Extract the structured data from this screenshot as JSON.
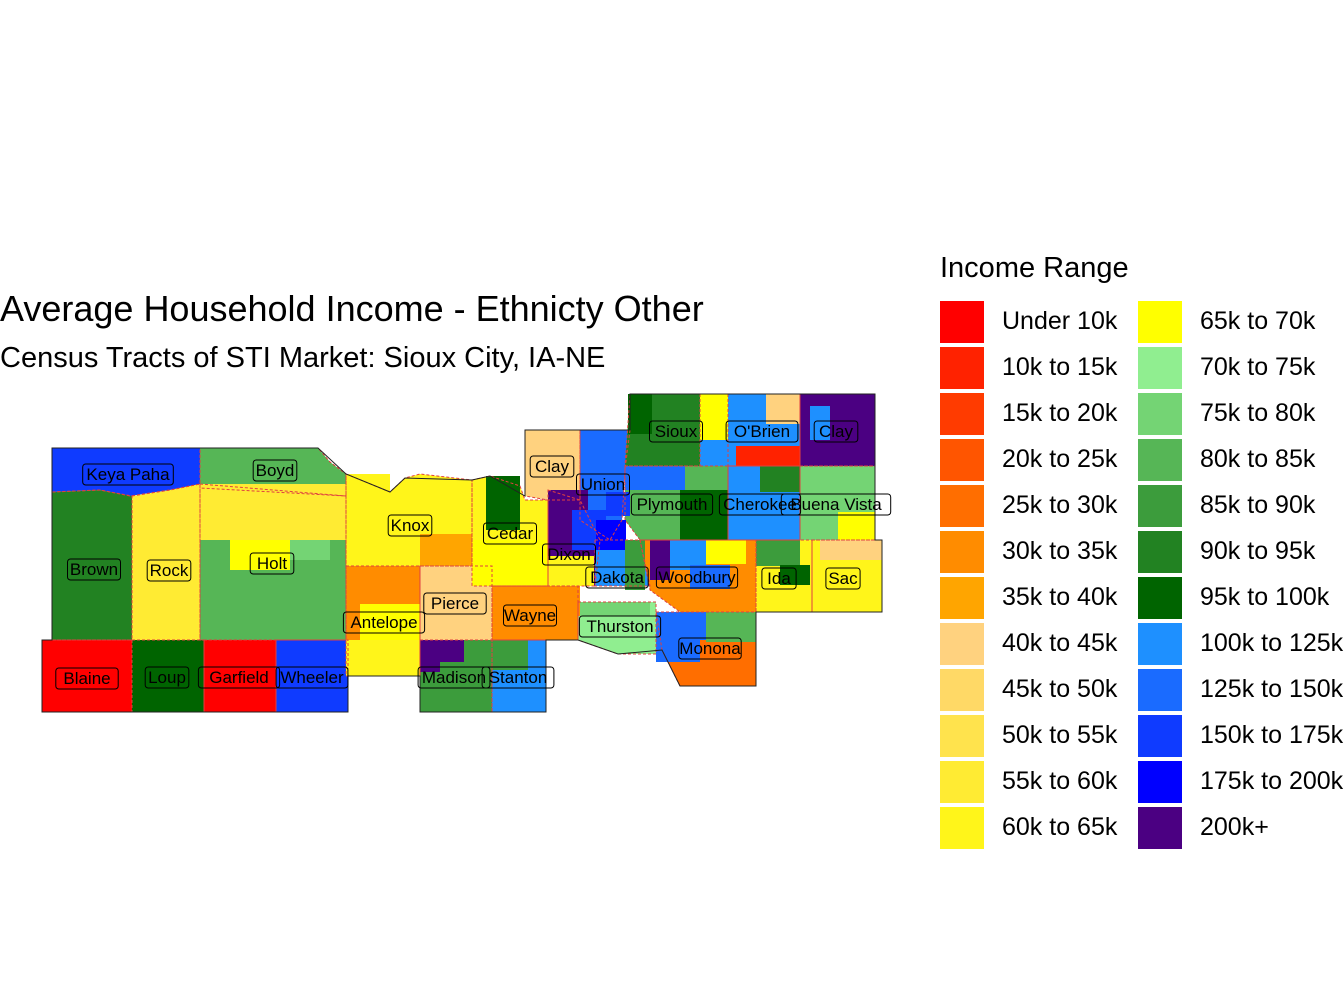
{
  "title": "Average Household Income - Ethnicty Other",
  "subtitle": "Census Tracts of STI Market: Sioux City, IA-NE",
  "legend": {
    "title": "Income Range",
    "items": [
      {
        "label": "Under 10k",
        "color": "#FF0000"
      },
      {
        "label": "10k to 15k",
        "color": "#FF2200"
      },
      {
        "label": "15k to 20k",
        "color": "#FF3B00"
      },
      {
        "label": "20k to 25k",
        "color": "#FF5500"
      },
      {
        "label": "25k to 30k",
        "color": "#FF6E00"
      },
      {
        "label": "30k to 35k",
        "color": "#FF8C00"
      },
      {
        "label": "35k to 40k",
        "color": "#FFA500"
      },
      {
        "label": "40k to 45k",
        "color": "#FFD27F"
      },
      {
        "label": "45k to 50k",
        "color": "#FFD966"
      },
      {
        "label": "50k to 55k",
        "color": "#FFE34D"
      },
      {
        "label": "55k to 60k",
        "color": "#FFEB33"
      },
      {
        "label": "60k to 65k",
        "color": "#FFF51A"
      },
      {
        "label": "65k to 70k",
        "color": "#FFFF00"
      },
      {
        "label": "70k to 75k",
        "color": "#90EE90"
      },
      {
        "label": "75k to 80k",
        "color": "#74D474"
      },
      {
        "label": "80k to 85k",
        "color": "#56B656"
      },
      {
        "label": "85k to 90k",
        "color": "#3C9C3C"
      },
      {
        "label": "90k to 95k",
        "color": "#228222"
      },
      {
        "label": "95k to 100k",
        "color": "#006400"
      },
      {
        "label": "100k to 125k",
        "color": "#1E90FF"
      },
      {
        "label": "125k to 150k",
        "color": "#1A6BFF"
      },
      {
        "label": "150k to 175k",
        "color": "#0F3BFF"
      },
      {
        "label": "175k to 200k",
        "color": "#0000FF"
      },
      {
        "label": "200k+",
        "color": "#4B0082"
      }
    ]
  },
  "map": {
    "counties": [
      {
        "name": "Keya Paha",
        "color": "#0F3BFF"
      },
      {
        "name": "Boyd",
        "color": "#56B656"
      },
      {
        "name": "Brown",
        "color": "#228222"
      },
      {
        "name": "Rock",
        "color": "#FFEB33"
      },
      {
        "name": "Holt",
        "color": "#56B656"
      },
      {
        "name": "Knox",
        "color": "#FFF51A"
      },
      {
        "name": "Cedar",
        "color": "#FFF51A"
      },
      {
        "name": "Clay",
        "color": "#FFD27F"
      },
      {
        "name": "Union",
        "color": "#1A6BFF"
      },
      {
        "name": "Sioux",
        "color": "#228222"
      },
      {
        "name": "O'Brien",
        "color": "#1E90FF"
      },
      {
        "name": "Clay",
        "color": "#4B0082"
      },
      {
        "name": "Plymouth",
        "color": "#56B656"
      },
      {
        "name": "Cherokee",
        "color": "#1E90FF"
      },
      {
        "name": "Buena Vista",
        "color": "#74D474"
      },
      {
        "name": "Dixon",
        "color": "#4B0082"
      },
      {
        "name": "Dakota",
        "color": "#1E90FF"
      },
      {
        "name": "Woodbury",
        "color": "#FF8C00"
      },
      {
        "name": "Ida",
        "color": "#FFF51A"
      },
      {
        "name": "Sac",
        "color": "#FFF51A"
      },
      {
        "name": "Antelope",
        "color": "#FF8C00"
      },
      {
        "name": "Pierce",
        "color": "#FFD27F"
      },
      {
        "name": "Wayne",
        "color": "#FF8C00"
      },
      {
        "name": "Thurston",
        "color": "#90EE90"
      },
      {
        "name": "Monona",
        "color": "#FF6E00"
      },
      {
        "name": "Blaine",
        "color": "#FF0000"
      },
      {
        "name": "Loup",
        "color": "#006400"
      },
      {
        "name": "Garfield",
        "color": "#FF0000"
      },
      {
        "name": "Wheeler",
        "color": "#0F3BFF"
      },
      {
        "name": "Madison",
        "color": "#3C9C3C"
      },
      {
        "name": "Stanton",
        "color": "#1E90FF"
      }
    ]
  }
}
